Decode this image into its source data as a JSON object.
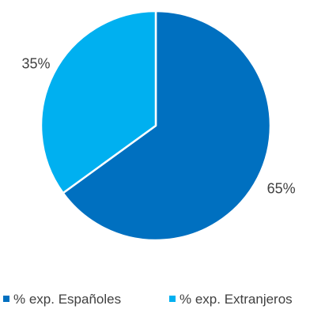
{
  "chart_data": {
    "type": "pie",
    "title": "",
    "categories": [
      "% exp. Españoles",
      "% exp. Extranjeros"
    ],
    "values": [
      65,
      35
    ],
    "data_labels": [
      "65%",
      "35%"
    ],
    "colors": [
      "#0070C0",
      "#00B0F0"
    ],
    "legend_position": "bottom",
    "start_angle_deg": 0,
    "direction": "clockwise"
  }
}
